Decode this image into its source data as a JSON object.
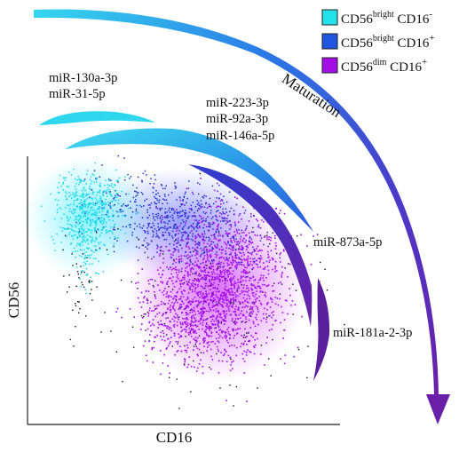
{
  "legend": {
    "items": [
      {
        "base": "CD56",
        "sup1": "bright",
        "mid": " CD16",
        "sup2": "-",
        "color": "#22e3ea"
      },
      {
        "base": "CD56",
        "sup1": "bright",
        "mid": " CD16",
        "sup2": "+",
        "color": "#1f55e0"
      },
      {
        "base": "CD56",
        "sup1": "dim",
        "mid": " CD16",
        "sup2": "+",
        "color": "#a30ee6"
      }
    ]
  },
  "arrow": {
    "label": "Maturation"
  },
  "axes": {
    "xlabel": "CD16",
    "ylabel": "CD56"
  },
  "mirna_groups": [
    {
      "lines": [
        "miR-130a-3p",
        "miR-31-5p"
      ]
    },
    {
      "lines": [
        "miR-223-3p",
        "miR-92a-3p",
        "miR-146a-5p"
      ]
    },
    {
      "lines": [
        "miR-873a-5p"
      ]
    },
    {
      "lines": [
        "miR-181a-2-3p"
      ]
    }
  ],
  "colors": {
    "cyan": "#22e3ea",
    "blue": "#1f55e0",
    "purple": "#a30ee6",
    "dark_purple": "#5b1f9e"
  }
}
